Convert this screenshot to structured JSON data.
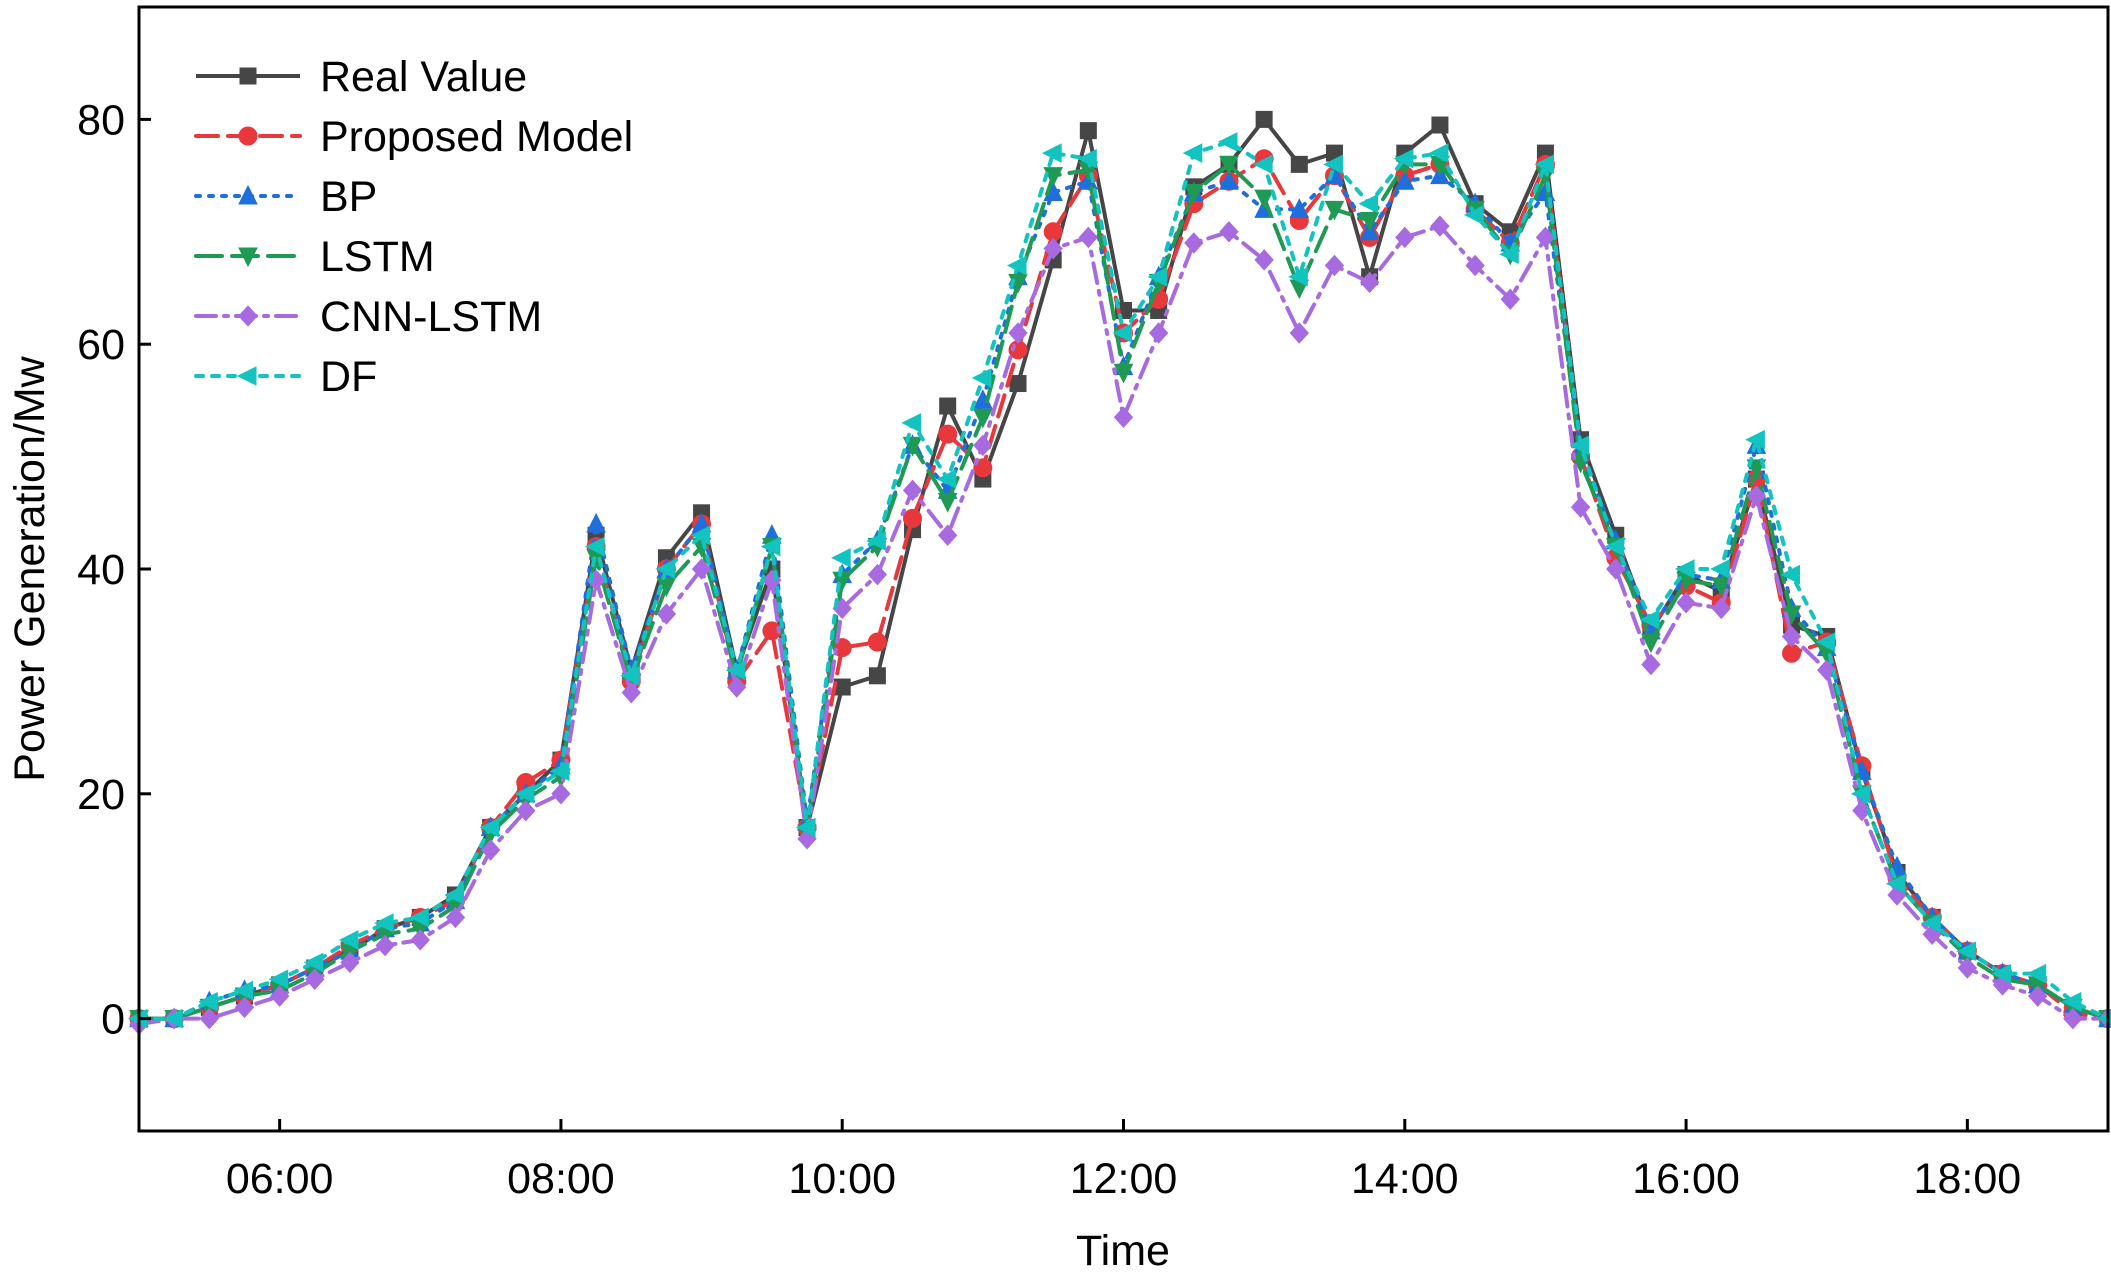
{
  "chart_data": {
    "type": "line",
    "title": "",
    "xlabel": "Time",
    "ylabel": "Power Generation/Mw",
    "xlim": [
      5.0,
      19.0
    ],
    "ylim": [
      -10,
      90
    ],
    "grid": false,
    "legend_position": "top-left",
    "x_ticks": [
      6,
      8,
      10,
      12,
      14,
      16,
      18
    ],
    "x_tick_labels": [
      "06:00",
      "08:00",
      "10:00",
      "12:00",
      "14:00",
      "16:00",
      "18:00"
    ],
    "y_ticks": [
      0,
      20,
      40,
      60,
      80
    ],
    "y_tick_labels": [
      "0",
      "20",
      "40",
      "60",
      "80"
    ],
    "x": [
      5.0,
      5.25,
      5.5,
      5.75,
      6.0,
      6.25,
      6.5,
      6.75,
      7.0,
      7.25,
      7.5,
      7.75,
      8.0,
      8.25,
      8.5,
      8.75,
      9.0,
      9.25,
      9.5,
      9.75,
      10.0,
      10.25,
      10.5,
      10.75,
      11.0,
      11.25,
      11.5,
      11.75,
      12.0,
      12.25,
      12.5,
      12.75,
      13.0,
      13.25,
      13.5,
      13.75,
      14.0,
      14.25,
      14.5,
      14.75,
      15.0,
      15.25,
      15.5,
      15.75,
      16.0,
      16.25,
      16.5,
      16.75,
      17.0,
      17.25,
      17.5,
      17.75,
      18.0,
      18.25,
      18.5,
      18.75,
      19.0
    ],
    "series": [
      {
        "name": "Real Value",
        "color": "#464646",
        "dash": "solid",
        "marker": "square",
        "values": [
          0,
          0,
          1,
          2,
          3,
          4.5,
          6,
          8,
          9,
          11,
          17,
          20,
          23,
          43,
          31,
          41,
          45,
          31,
          40,
          17,
          29.5,
          30.5,
          43.5,
          54.5,
          48,
          56.5,
          67.5,
          79,
          63,
          63,
          74,
          76,
          80,
          76,
          77,
          66,
          77,
          79.5,
          72.5,
          70,
          77,
          51.5,
          43,
          34.5,
          39.5,
          38,
          48,
          35,
          34,
          22,
          13,
          9,
          6,
          4,
          3,
          1,
          0
        ]
      },
      {
        "name": "Proposed Model",
        "color": "#e8383c",
        "dash": "dash",
        "marker": "circle",
        "values": [
          0,
          0,
          1,
          2,
          3,
          4.5,
          6.5,
          8,
          9,
          10.5,
          17,
          21,
          23,
          42,
          30,
          40,
          44,
          30,
          34.5,
          17,
          33,
          33.5,
          44.5,
          52,
          49,
          59.5,
          70,
          75,
          61,
          64,
          72.5,
          74.5,
          76.5,
          71,
          75,
          69.5,
          75,
          76,
          72,
          69,
          76,
          50,
          41,
          35,
          38.5,
          37,
          48,
          32.5,
          33.5,
          22.5,
          12.5,
          9,
          6,
          4,
          3,
          0.5,
          0
        ]
      },
      {
        "name": "BP",
        "color": "#1e6fdc",
        "dash": "dot",
        "marker": "triangle-up",
        "values": [
          0,
          0,
          1.5,
          2.5,
          3,
          4.5,
          6,
          8,
          8.5,
          10.5,
          17,
          20,
          22.5,
          44,
          31,
          40,
          44,
          31,
          43,
          17.5,
          39.5,
          42.5,
          51,
          47,
          55,
          66,
          73.5,
          74.5,
          58,
          66,
          73.5,
          74.5,
          72,
          72,
          75,
          70,
          74.5,
          75,
          72.5,
          69,
          73.5,
          50.5,
          42.5,
          34.5,
          39.5,
          39,
          51,
          36.5,
          33,
          22,
          13.5,
          9,
          6,
          4,
          3,
          1,
          0
        ]
      },
      {
        "name": "LSTM",
        "color": "#1f9a55",
        "dash": "longdash",
        "marker": "triangle-down",
        "values": [
          0,
          0,
          1,
          2,
          2.5,
          4,
          6,
          7.5,
          8,
          10,
          16.5,
          19.5,
          21.5,
          41,
          30,
          38.5,
          42,
          30.5,
          42,
          16.5,
          39,
          42,
          51,
          46,
          53.5,
          65.5,
          75,
          75.5,
          57.5,
          65.5,
          73.5,
          76,
          73,
          65,
          72,
          71,
          76,
          76,
          72,
          68,
          75,
          49.5,
          42,
          33.5,
          39,
          38.5,
          49,
          36,
          32.5,
          20,
          12,
          8.5,
          5.5,
          3.5,
          3,
          1,
          0
        ]
      },
      {
        "name": "CNN-LSTM",
        "color": "#a86ae0",
        "dash": "dashdot",
        "marker": "diamond",
        "values": [
          -0.5,
          0,
          0,
          1,
          2,
          3.5,
          5,
          6.5,
          7,
          9,
          15,
          18.5,
          20,
          39,
          29,
          36,
          40,
          29.5,
          39,
          16,
          36.5,
          39.5,
          47,
          43,
          51,
          61,
          68.5,
          69.5,
          53.5,
          61,
          69,
          70,
          67.5,
          61,
          67,
          65.5,
          69.5,
          70.5,
          67,
          64,
          69.5,
          45.5,
          40,
          31.5,
          37,
          36.5,
          46.5,
          34,
          31,
          18.5,
          11,
          7.5,
          4.5,
          3,
          2,
          0,
          0
        ]
      },
      {
        "name": "DF",
        "color": "#12c3c0",
        "dash": "shortdot",
        "marker": "triangle-left",
        "values": [
          0,
          0,
          1.5,
          2.5,
          3.5,
          5,
          7,
          8.5,
          9,
          11,
          17,
          20,
          22,
          42,
          30.5,
          40,
          43,
          31,
          42,
          17,
          41,
          42.5,
          53,
          48,
          57,
          67,
          77,
          76.5,
          61,
          66,
          77,
          78,
          76,
          66,
          76,
          72.5,
          76.5,
          77,
          71.5,
          68,
          76,
          51,
          42,
          35.5,
          40,
          40,
          51.5,
          39.5,
          33.5,
          20,
          12,
          8.5,
          6,
          4,
          4,
          1.5,
          0
        ]
      }
    ]
  }
}
